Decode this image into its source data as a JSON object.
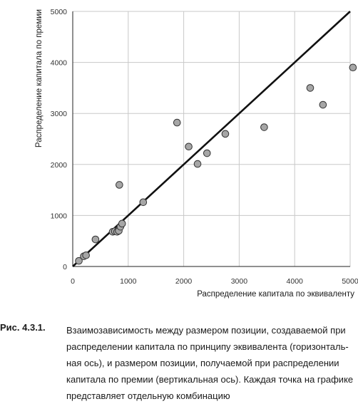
{
  "caption": {
    "label": "Рис. 4.3.1.",
    "text": "Взаимозависимость между размером позиции, создаваемой при распределении капитала по принципу эквивалента (горизонталь-ная ось), и размером позиции, получаемой при распределении капитала по премии (вертикальная ось). Каждая точка на графике представляет отдельную комбинацию"
  },
  "chart_data": {
    "type": "scatter",
    "xlabel": "Распределение капитала по эквиваленту",
    "ylabel": "Распределение капитала по премии",
    "xlim": [
      0,
      5000
    ],
    "ylim": [
      0,
      5000
    ],
    "xticks": [
      0,
      1000,
      2000,
      3000,
      4000,
      5000
    ],
    "yticks": [
      0,
      1000,
      2000,
      3000,
      4000,
      5000
    ],
    "grid": true,
    "reference_line": {
      "from": [
        0,
        0
      ],
      "to": [
        5000,
        5000
      ]
    },
    "colors": {
      "point_fill": "#a6a6a6",
      "point_stroke": "#333333",
      "grid": "#c8c8c8",
      "line": "#111111"
    },
    "points": [
      {
        "x": 110,
        "y": 110
      },
      {
        "x": 200,
        "y": 200
      },
      {
        "x": 240,
        "y": 220
      },
      {
        "x": 410,
        "y": 530
      },
      {
        "x": 720,
        "y": 680
      },
      {
        "x": 760,
        "y": 690
      },
      {
        "x": 800,
        "y": 680
      },
      {
        "x": 830,
        "y": 700
      },
      {
        "x": 860,
        "y": 780
      },
      {
        "x": 890,
        "y": 840
      },
      {
        "x": 840,
        "y": 1600
      },
      {
        "x": 1270,
        "y": 1260
      },
      {
        "x": 1880,
        "y": 2820
      },
      {
        "x": 2090,
        "y": 2350
      },
      {
        "x": 2250,
        "y": 2010
      },
      {
        "x": 2420,
        "y": 2220
      },
      {
        "x": 2750,
        "y": 2600
      },
      {
        "x": 3450,
        "y": 2730
      },
      {
        "x": 4280,
        "y": 3500
      },
      {
        "x": 4510,
        "y": 3170
      },
      {
        "x": 5050,
        "y": 3900
      }
    ]
  }
}
